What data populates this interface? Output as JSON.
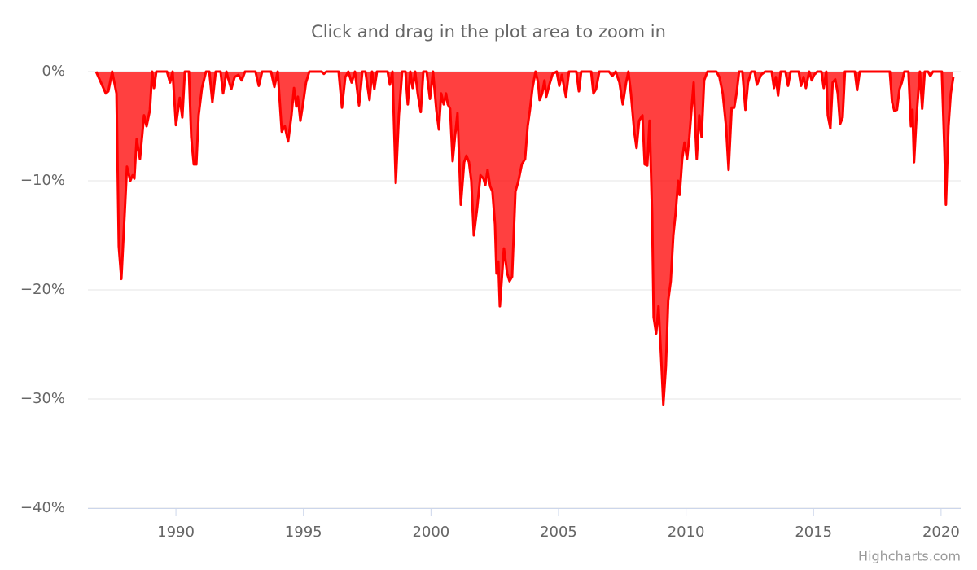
{
  "chart_data": {
    "type": "area",
    "title": "Click and drag in the plot area to zoom in",
    "credits": "Highcharts.com",
    "color": "#ff0000",
    "grid": true,
    "xlim": [
      1986.55,
      2020.77
    ],
    "ylim": [
      -40,
      0
    ],
    "xticks": [
      1990,
      1995,
      2000,
      2005,
      2010,
      2015,
      2020
    ],
    "yticks": [
      {
        "value": 0,
        "label": "0%"
      },
      {
        "value": -10,
        "label": "−10%"
      },
      {
        "value": -20,
        "label": "−20%"
      },
      {
        "value": -30,
        "label": "−30%"
      },
      {
        "value": -40,
        "label": "−40%"
      }
    ],
    "x": [
      1986.87,
      1987.25,
      1987.35,
      1987.5,
      1987.67,
      1987.76,
      1987.86,
      1987.99,
      1988.08,
      1988.21,
      1988.3,
      1988.37,
      1988.46,
      1988.59,
      1988.75,
      1988.85,
      1988.98,
      1989.07,
      1989.14,
      1989.23,
      1989.65,
      1989.77,
      1989.87,
      1990.0,
      1990.15,
      1990.25,
      1990.35,
      1990.51,
      1990.6,
      1990.7,
      1990.8,
      1990.89,
      1991.02,
      1991.18,
      1991.31,
      1991.43,
      1991.56,
      1991.75,
      1991.85,
      1991.98,
      1992.07,
      1992.17,
      1992.3,
      1992.45,
      1992.58,
      1992.71,
      1993.12,
      1993.25,
      1993.38,
      1993.73,
      1993.86,
      1993.99,
      1994.05,
      1994.15,
      1994.27,
      1994.4,
      1994.53,
      1994.63,
      1994.72,
      1994.78,
      1994.88,
      1994.98,
      1995.1,
      1995.23,
      1995.71,
      1995.8,
      1995.9,
      1996.38,
      1996.51,
      1996.64,
      1996.76,
      1996.89,
      1997.02,
      1997.18,
      1997.31,
      1997.43,
      1997.59,
      1997.69,
      1997.78,
      1997.88,
      1998.3,
      1998.39,
      1998.49,
      1998.62,
      1998.74,
      1998.87,
      1999.0,
      1999.09,
      1999.19,
      1999.28,
      1999.38,
      1999.48,
      1999.6,
      1999.7,
      1999.83,
      1999.96,
      2000.08,
      2000.21,
      2000.31,
      2000.4,
      2000.5,
      2000.59,
      2000.66,
      2000.75,
      2000.85,
      2000.94,
      2001.04,
      2001.17,
      2001.3,
      2001.39,
      2001.49,
      2001.58,
      2001.68,
      2001.81,
      2001.94,
      2002.06,
      2002.13,
      2002.22,
      2002.32,
      2002.41,
      2002.51,
      2002.57,
      2002.64,
      2002.7,
      2002.86,
      2002.99,
      2003.08,
      2003.18,
      2003.31,
      2003.43,
      2003.56,
      2003.69,
      2003.79,
      2003.88,
      2003.98,
      2004.1,
      2004.2,
      2004.26,
      2004.36,
      2004.45,
      2004.52,
      2004.64,
      2004.77,
      2004.93,
      2005.03,
      2005.13,
      2005.29,
      2005.41,
      2005.7,
      2005.8,
      2005.89,
      2006.28,
      2006.37,
      2006.47,
      2006.6,
      2006.98,
      2007.11,
      2007.24,
      2007.39,
      2007.52,
      2007.65,
      2007.74,
      2007.84,
      2007.97,
      2008.06,
      2008.16,
      2008.29,
      2008.38,
      2008.48,
      2008.57,
      2008.67,
      2008.73,
      2008.83,
      2008.92,
      2009.02,
      2009.11,
      2009.21,
      2009.3,
      2009.4,
      2009.5,
      2009.59,
      2009.69,
      2009.75,
      2009.85,
      2009.94,
      2010.04,
      2010.13,
      2010.23,
      2010.3,
      2010.36,
      2010.42,
      2010.52,
      2010.61,
      2010.71,
      2010.84,
      2011.19,
      2011.31,
      2011.44,
      2011.57,
      2011.67,
      2011.79,
      2011.89,
      2011.98,
      2012.08,
      2012.21,
      2012.33,
      2012.43,
      2012.56,
      2012.69,
      2012.78,
      2012.94,
      2013.1,
      2013.36,
      2013.45,
      2013.52,
      2013.61,
      2013.71,
      2013.9,
      2014.0,
      2014.1,
      2014.42,
      2014.51,
      2014.61,
      2014.7,
      2014.83,
      2014.93,
      2015.02,
      2015.15,
      2015.31,
      2015.4,
      2015.5,
      2015.56,
      2015.66,
      2015.75,
      2015.85,
      2015.95,
      2016.04,
      2016.14,
      2016.23,
      2016.62,
      2016.71,
      2016.81,
      2017.99,
      2018.08,
      2018.17,
      2018.27,
      2018.37,
      2018.46,
      2018.56,
      2018.72,
      2018.82,
      2018.88,
      2018.94,
      2019.04,
      2019.17,
      2019.26,
      2019.36,
      2019.49,
      2019.58,
      2019.68,
      2020.03,
      2020.13,
      2020.19,
      2020.29,
      2020.38,
      2020.48
    ],
    "values": [
      0,
      -2,
      -1.8,
      0,
      -2,
      -16,
      -19,
      -13,
      -8.7,
      -10,
      -9.5,
      -9.8,
      -6.2,
      -8,
      -4,
      -5,
      -3.5,
      0,
      -1.5,
      0,
      0,
      -1,
      0,
      -4.9,
      -2.4,
      -4.2,
      0,
      0,
      -6,
      -8.5,
      -8.5,
      -4,
      -1.5,
      0,
      0,
      -2.8,
      0,
      0,
      -2,
      0,
      -0.8,
      -1.6,
      -0.5,
      -0.3,
      -0.8,
      0,
      0,
      -1.3,
      0,
      0,
      -1.4,
      0,
      -2,
      -5.5,
      -5,
      -6.4,
      -4,
      -1.5,
      -3.2,
      -2.3,
      -4.5,
      -3,
      -1,
      0,
      0,
      -0.2,
      0,
      0,
      -3.3,
      -0.5,
      0,
      -1,
      0,
      -3.1,
      0,
      0,
      -2.6,
      0,
      -1.6,
      0,
      0,
      -1.2,
      0,
      -10.2,
      -4,
      0,
      0,
      -3,
      0,
      -1.5,
      0,
      -2,
      -3.7,
      0,
      0,
      -2.5,
      0,
      -3.5,
      -5.3,
      -2,
      -3,
      -2,
      -3,
      -3.4,
      -8.2,
      -6,
      -3.8,
      -12.2,
      -8.3,
      -7.7,
      -8.3,
      -10,
      -15,
      -12.5,
      -9.5,
      -9.8,
      -10.4,
      -9,
      -10.5,
      -11,
      -14,
      -18.5,
      -17.4,
      -21.5,
      -16.2,
      -18.5,
      -19.2,
      -18.8,
      -11,
      -10,
      -8.5,
      -8,
      -5,
      -3.5,
      -1.5,
      0,
      -1,
      -2.6,
      -2,
      -0.8,
      -2.3,
      -1.2,
      -0.2,
      0,
      -1.3,
      -0.3,
      -2.3,
      0,
      0,
      -1.8,
      0,
      0,
      -2,
      -1.6,
      0,
      0,
      -0.4,
      0,
      -1,
      -3,
      -1,
      0,
      -2,
      -5.5,
      -7,
      -4.5,
      -4,
      -8.5,
      -8.6,
      -4.5,
      -13,
      -22.5,
      -24,
      -21.5,
      -26,
      -30.5,
      -27,
      -21,
      -19.2,
      -15,
      -13,
      -10,
      -11.3,
      -8,
      -6.5,
      -8,
      -6,
      -3,
      -1,
      -5,
      -8,
      -4,
      -6,
      -0.8,
      0,
      0,
      -0.5,
      -2,
      -5,
      -9,
      -3.3,
      -3.3,
      -2,
      0,
      0,
      -3.5,
      -1,
      0,
      0,
      -1.2,
      -0.3,
      0,
      0,
      -1.5,
      -0.5,
      -2.2,
      0,
      0,
      -1.3,
      0,
      0,
      -1.3,
      -0.5,
      -1.5,
      0,
      -0.8,
      -0.3,
      0,
      0,
      -1.5,
      0,
      -4,
      -5.2,
      -1,
      -0.7,
      -2,
      -4.8,
      -4.2,
      0,
      0,
      -1.7,
      0,
      0,
      -2.8,
      -3.6,
      -3.5,
      -1.6,
      -1,
      0,
      0,
      -5,
      -3.5,
      -8.3,
      -4,
      0,
      -3.4,
      0,
      0,
      -0.4,
      0,
      0,
      -7,
      -12.2,
      -5,
      -2,
      -0.5
    ]
  }
}
